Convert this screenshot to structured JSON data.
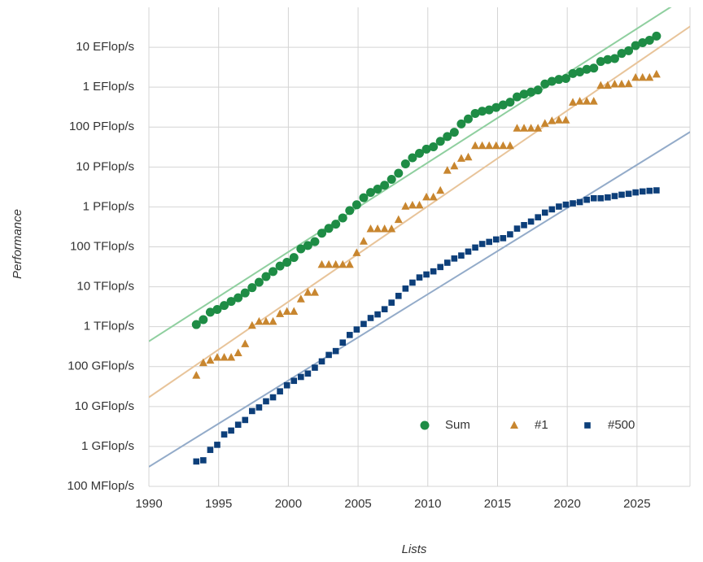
{
  "chart_data": {
    "type": "scatter",
    "yscale": "log",
    "grid": true,
    "legend": "lower right",
    "xlabel": "Lists",
    "ylabel": "Performance",
    "xlim": [
      1990,
      2028.8
    ],
    "ylim": [
      100000000.0,
      1e+20
    ],
    "xticks": [
      1990,
      1995,
      2000,
      2005,
      2010,
      2015,
      2020,
      2025
    ],
    "yticks": [
      {
        "value": 100000000.0,
        "label": "100 MFlop/s"
      },
      {
        "value": 1000000000.0,
        "label": "1 GFlop/s"
      },
      {
        "value": 10000000000.0,
        "label": "10 GFlop/s"
      },
      {
        "value": 100000000000.0,
        "label": "100 GFlop/s"
      },
      {
        "value": 1000000000000.0,
        "label": "1 TFlop/s"
      },
      {
        "value": 10000000000000.0,
        "label": "10 TFlop/s"
      },
      {
        "value": 100000000000000.0,
        "label": "100 TFlop/s"
      },
      {
        "value": 1000000000000000.0,
        "label": "1 PFlop/s"
      },
      {
        "value": 1e+16,
        "label": "10 PFlop/s"
      },
      {
        "value": 1e+17,
        "label": "100 PFlop/s"
      },
      {
        "value": 1e+18,
        "label": "1 EFlop/s"
      },
      {
        "value": 1e+19,
        "label": "10 EFlop/s"
      }
    ],
    "x": [
      1993.4,
      1993.9,
      1994.4,
      1994.9,
      1995.4,
      1995.9,
      1996.4,
      1996.9,
      1997.4,
      1997.9,
      1998.4,
      1998.9,
      1999.4,
      1999.9,
      2000.4,
      2000.9,
      2001.4,
      2001.9,
      2002.4,
      2002.9,
      2003.4,
      2003.9,
      2004.4,
      2004.9,
      2005.4,
      2005.9,
      2006.4,
      2006.9,
      2007.4,
      2007.9,
      2008.4,
      2008.9,
      2009.4,
      2009.9,
      2010.4,
      2010.9,
      2011.4,
      2011.9,
      2012.4,
      2012.9,
      2013.4,
      2013.9,
      2014.4,
      2014.9,
      2015.4,
      2015.9,
      2016.4,
      2016.9,
      2017.4,
      2017.9,
      2018.4,
      2018.9,
      2019.4,
      2019.9,
      2020.4,
      2020.9,
      2021.4,
      2021.9,
      2022.4,
      2022.9,
      2023.4,
      2023.9,
      2024.4,
      2024.9,
      2025.4,
      2025.9,
      2026.4
    ],
    "series": [
      {
        "name": "Sum",
        "color": "#1e8c45",
        "marker": "circle",
        "values": [
          1130000000000.0,
          1500000000000.0,
          2300000000000.0,
          2700000000000.0,
          3400000000000.0,
          4300000000000.0,
          5300000000000.0,
          7000000000000.0,
          9500000000000.0,
          13000000000000.0,
          18000000000000.0,
          24000000000000.0,
          33000000000000.0,
          41000000000000.0,
          54000000000000.0,
          89000000000000.0,
          108000000000000.0,
          135000000000000.0,
          220000000000000.0,
          290000000000000.0,
          370000000000000.0,
          530000000000000.0,
          810000000000000.0,
          1130000000000000.0,
          1700000000000000.0,
          2300000000000000.0,
          2800000000000000.0,
          3500000000000000.0,
          4900000000000000.0,
          6970000000000000.0,
          1.2e+16,
          1.7e+16,
          2.2e+16,
          2.8e+16,
          3.2e+16,
          4.4e+16,
          5.8e+16,
          7.4e+16,
          1.2e+17,
          1.6e+17,
          2.2e+17,
          2.5e+17,
          2.7e+17,
          3.1e+17,
          3.6e+17,
          4.2e+17,
          5.7e+17,
          6.7e+17,
          7.5e+17,
          8.5e+17,
          1.2e+18,
          1.4e+18,
          1.56e+18,
          1.65e+18,
          2.2e+18,
          2.4e+18,
          2.8e+18,
          3e+18,
          4.4e+18,
          4.9e+18,
          5.2e+18,
          7e+18,
          8.2e+18,
          1.1e+19,
          1.3e+19,
          1.5e+19,
          1.9e+19
        ]
      },
      {
        "name": "#1",
        "color": "#c8862f",
        "marker": "triangle",
        "values": [
          60000000000.0,
          124000000000.0,
          143000000000.0,
          170000000000.0,
          170000000000.0,
          170000000000.0,
          220000000000.0,
          370000000000.0,
          1070000000000.0,
          1340000000000.0,
          1340000000000.0,
          1340000000000.0,
          2100000000000.0,
          2400000000000.0,
          2400000000000.0,
          4900000000000.0,
          7200000000000.0,
          7200000000000.0,
          35900000000000.0,
          35900000000000.0,
          35900000000000.0,
          35900000000000.0,
          35900000000000.0,
          70700000000000.0,
          137000000000000.0,
          281000000000000.0,
          281000000000000.0,
          281000000000000.0,
          281000000000000.0,
          478000000000000.0,
          1030000000000000.0,
          1100000000000000.0,
          1100000000000000.0,
          1760000000000000.0,
          1760000000000000.0,
          2570000000000000.0,
          8160000000000000.0,
          1.05e+16,
          1.63e+16,
          1.76e+16,
          3.39e+16,
          3.39e+16,
          3.39e+16,
          3.39e+16,
          3.39e+16,
          3.39e+16,
          9.3e+16,
          9.3e+16,
          9.3e+16,
          9.3e+16,
          1.23e+17,
          1.43e+17,
          1.49e+17,
          1.49e+17,
          4.15e+17,
          4.42e+17,
          4.42e+17,
          4.42e+17,
          1.1e+18,
          1.1e+18,
          1.19e+18,
          1.19e+18,
          1.21e+18,
          1.74e+18,
          1.74e+18,
          1.74e+18,
          2.1e+18
        ]
      },
      {
        "name": "#500",
        "color": "#0d3f7a",
        "marker": "square",
        "values": [
          420000000.0,
          450000000.0,
          820000000.0,
          1100000000.0,
          2000000000.0,
          2500000000.0,
          3500000000.0,
          4600000000.0,
          7700000000.0,
          9500000000.0,
          13500000000.0,
          17000000000.0,
          24000000000.0,
          34000000000.0,
          44000000000.0,
          55000000000.0,
          67000000000.0,
          94000000000.0,
          135000000000.0,
          196000000000.0,
          245000000000.0,
          400000000000.0,
          620000000000.0,
          850000000000.0,
          1170000000000.0,
          1650000000000.0,
          2030000000000.0,
          2740000000000.0,
          4000000000000.0,
          5900000000000.0,
          9000000000000.0,
          12700000000000.0,
          17100000000000.0,
          20300000000000.0,
          24300000000000.0,
          31200000000000.0,
          40000000000000.0,
          51000000000000.0,
          60600000000000.0,
          76000000000000.0,
          96000000000000.0,
          118000000000000.0,
          133000000000000.0,
          153000000000000.0,
          165000000000000.0,
          206000000000000.0,
          286000000000000.0,
          350000000000000.0,
          430000000000000.0,
          550000000000000.0,
          720000000000000.0,
          870000000000000.0,
          1020000000000000.0,
          1140000000000000.0,
          1230000000000000.0,
          1320000000000000.0,
          1510000000000000.0,
          1650000000000000.0,
          1650000000000000.0,
          1730000000000000.0,
          1870000000000000.0,
          2020000000000000.0,
          2130000000000000.0,
          2310000000000000.0,
          2440000000000000.0,
          2530000000000000.0,
          2600000000000000.0
        ]
      }
    ],
    "trendlines": [
      {
        "color": "#8fcf9f",
        "x": [
          1990,
          2029
        ],
        "values": [
          430000000000.0,
          2.3e+20
        ]
      },
      {
        "color": "#e8c49a",
        "x": [
          1990,
          2029
        ],
        "values": [
          17000000000.0,
          3.7e+19
        ]
      },
      {
        "color": "#93abc9",
        "x": [
          1990,
          2029
        ],
        "values": [
          310000000.0,
          8.3e+16
        ]
      }
    ]
  }
}
